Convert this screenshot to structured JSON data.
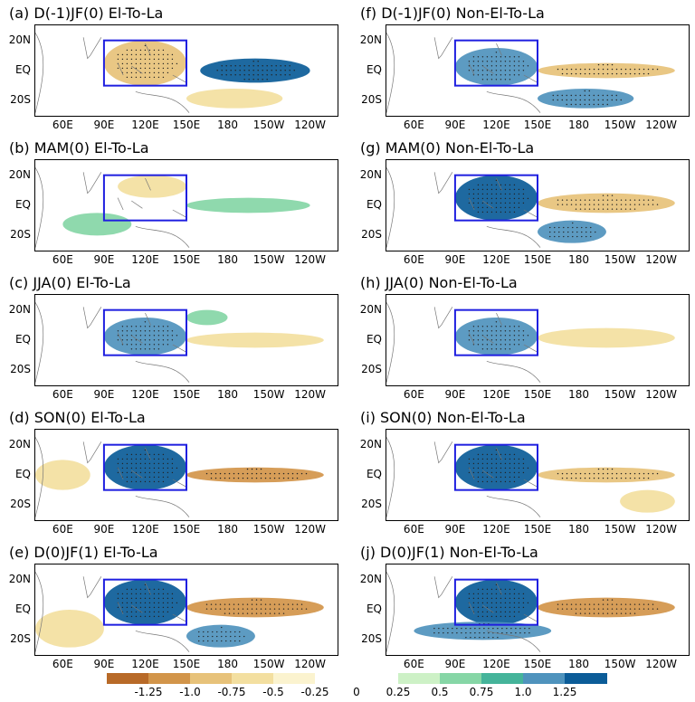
{
  "chart_data": {
    "type": "heatmap",
    "panels": [
      {
        "title": "(a) D(-1)JF(0) El-To-La",
        "season": "D(-1)JF(0)",
        "composite": "El-To-La",
        "features": [
          {
            "region": "central-eastern equatorial Pacific",
            "lon": [
              160,
              240
            ],
            "lat": [
              -8,
              8
            ],
            "value": 1.25
          },
          {
            "region": "maritime continent box",
            "lon": [
              90,
              150
            ],
            "lat": [
              -10,
              20
            ],
            "value": -1.0
          },
          {
            "region": "subtropical Pacific",
            "lon": [
              150,
              220
            ],
            "lat": [
              -25,
              -12
            ],
            "value": -0.75
          }
        ]
      },
      {
        "title": "(b) MAM(0) El-To-La",
        "season": "MAM(0)",
        "composite": "El-To-La",
        "features": [
          {
            "region": "maritime continent box",
            "lon": [
              100,
              150
            ],
            "lat": [
              5,
              20
            ],
            "value": -0.75
          },
          {
            "region": "equatorial Pacific",
            "lon": [
              150,
              240
            ],
            "lat": [
              -5,
              5
            ],
            "value": 0.5
          },
          {
            "region": "south Indian Ocean",
            "lon": [
              60,
              110
            ],
            "lat": [
              -20,
              -5
            ],
            "value": 0.5
          }
        ]
      },
      {
        "title": "(c) JJA(0) El-To-La",
        "season": "JJA(0)",
        "composite": "El-To-La",
        "features": [
          {
            "region": "maritime continent box",
            "lon": [
              90,
              150
            ],
            "lat": [
              -10,
              15
            ],
            "value": 1.0
          },
          {
            "region": "equatorial Pacific",
            "lon": [
              150,
              250
            ],
            "lat": [
              -5,
              5
            ],
            "value": -0.75
          },
          {
            "region": "northwest Pacific",
            "lon": [
              150,
              180
            ],
            "lat": [
              10,
              20
            ],
            "value": 0.5
          }
        ]
      },
      {
        "title": "(d) SON(0) El-To-La",
        "season": "SON(0)",
        "composite": "El-To-La",
        "features": [
          {
            "region": "maritime continent box",
            "lon": [
              90,
              150
            ],
            "lat": [
              -10,
              20
            ],
            "value": 1.25
          },
          {
            "region": "equatorial Pacific",
            "lon": [
              150,
              250
            ],
            "lat": [
              -5,
              5
            ],
            "value": -1.25
          },
          {
            "region": "western Indian Ocean",
            "lon": [
              40,
              80
            ],
            "lat": [
              -10,
              10
            ],
            "value": -0.75
          }
        ]
      },
      {
        "title": "(e) D(0)JF(1) El-To-La",
        "season": "D(0)JF(1)",
        "composite": "El-To-La",
        "features": [
          {
            "region": "maritime continent box",
            "lon": [
              90,
              150
            ],
            "lat": [
              -10,
              20
            ],
            "value": 1.25
          },
          {
            "region": "equatorial Pacific",
            "lon": [
              150,
              250
            ],
            "lat": [
              -5,
              8
            ],
            "value": -1.25
          },
          {
            "region": "south Indian Ocean",
            "lon": [
              40,
              90
            ],
            "lat": [
              -25,
              0
            ],
            "value": -0.75
          },
          {
            "region": "southwest Pacific",
            "lon": [
              150,
              200
            ],
            "lat": [
              -25,
              -10
            ],
            "value": 1.0
          }
        ]
      },
      {
        "title": "(f) D(-1)JF(0) Non-El-To-La",
        "season": "D(-1)JF(0)",
        "composite": "Non-El-To-La",
        "features": [
          {
            "region": "maritime continent box",
            "lon": [
              90,
              150
            ],
            "lat": [
              -10,
              15
            ],
            "value": 1.0
          },
          {
            "region": "equatorial Pacific",
            "lon": [
              150,
              250
            ],
            "lat": [
              -5,
              5
            ],
            "value": -1.0
          },
          {
            "region": "southwest Pacific",
            "lon": [
              150,
              220
            ],
            "lat": [
              -25,
              -12
            ],
            "value": 1.0
          }
        ]
      },
      {
        "title": "(g) MAM(0) Non-El-To-La",
        "season": "MAM(0)",
        "composite": "Non-El-To-La",
        "features": [
          {
            "region": "maritime continent box",
            "lon": [
              90,
              150
            ],
            "lat": [
              -10,
              20
            ],
            "value": 1.25
          },
          {
            "region": "equatorial Pacific",
            "lon": [
              150,
              250
            ],
            "lat": [
              -5,
              8
            ],
            "value": -1.0
          },
          {
            "region": "southwest Pacific",
            "lon": [
              150,
              200
            ],
            "lat": [
              -25,
              -10
            ],
            "value": 1.0
          }
        ]
      },
      {
        "title": "(h) JJA(0) Non-El-To-La",
        "season": "JJA(0)",
        "composite": "Non-El-To-La",
        "features": [
          {
            "region": "maritime continent box",
            "lon": [
              90,
              150
            ],
            "lat": [
              -10,
              15
            ],
            "value": 1.0
          },
          {
            "region": "equatorial Pacific",
            "lon": [
              150,
              250
            ],
            "lat": [
              -5,
              8
            ],
            "value": -0.75
          }
        ]
      },
      {
        "title": "(i) SON(0) Non-El-To-La",
        "season": "SON(0)",
        "composite": "Non-El-To-La",
        "features": [
          {
            "region": "maritime continent box",
            "lon": [
              90,
              150
            ],
            "lat": [
              -10,
              20
            ],
            "value": 1.25
          },
          {
            "region": "equatorial Pacific",
            "lon": [
              150,
              250
            ],
            "lat": [
              -5,
              5
            ],
            "value": -1.0
          },
          {
            "region": "southeast Pacific",
            "lon": [
              210,
              250
            ],
            "lat": [
              -25,
              -10
            ],
            "value": -0.75
          }
        ]
      },
      {
        "title": "(j) D(0)JF(1) Non-El-To-La",
        "season": "D(0)JF(1)",
        "composite": "Non-El-To-La",
        "features": [
          {
            "region": "maritime continent box",
            "lon": [
              90,
              150
            ],
            "lat": [
              -10,
              20
            ],
            "value": 1.25
          },
          {
            "region": "equatorial Pacific",
            "lon": [
              150,
              250
            ],
            "lat": [
              -5,
              8
            ],
            "value": -1.25
          },
          {
            "region": "south Indian Ocean / Australia",
            "lon": [
              60,
              160
            ],
            "lat": [
              -20,
              -8
            ],
            "value": 1.0
          }
        ]
      }
    ],
    "box": {
      "lon": [
        90,
        150
      ],
      "lat": [
        -10,
        20
      ],
      "color": "#1f1fe0"
    },
    "axes": {
      "lon_range": [
        40,
        260
      ],
      "lat_range": [
        -30,
        30
      ],
      "xticks": [
        "60E",
        "90E",
        "120E",
        "150E",
        "180",
        "150W",
        "120W"
      ],
      "xtick_lons": [
        60,
        90,
        120,
        150,
        180,
        210,
        240
      ],
      "yticks": [
        "20N",
        "EQ",
        "20S"
      ],
      "ytick_lats": [
        20,
        0,
        -20
      ]
    },
    "colorbar": {
      "levels": [
        -1.25,
        -1.0,
        -0.75,
        -0.5,
        -0.25,
        0,
        0.25,
        0.5,
        0.75,
        1.0,
        1.25
      ],
      "labels": [
        "-1.25",
        "-1.0",
        "-0.75",
        "-0.5",
        "-0.25",
        "0",
        "0.25",
        "0.5",
        "0.75",
        "1.0",
        "1.25"
      ],
      "colors": [
        "#b86a28",
        "#d2954a",
        "#e7c27a",
        "#f3dfa0",
        "#fbf3cf",
        "#ffffff",
        "#ffffff",
        "#cdf1c6",
        "#86d6a6",
        "#45b49a",
        "#4f93bd",
        "#0b5c98"
      ]
    }
  }
}
